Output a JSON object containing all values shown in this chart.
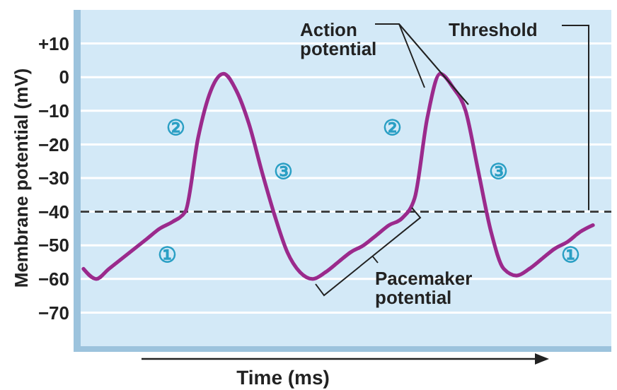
{
  "chart_data": {
    "type": "line",
    "xlabel": "Time (ms)",
    "ylabel": "Membrane potential (mV)",
    "categories": [
      null,
      null,
      null,
      null,
      null,
      null,
      null,
      null,
      null,
      null,
      null,
      null,
      null,
      null,
      null,
      null,
      null,
      null,
      null,
      null,
      null,
      null,
      null,
      null,
      null,
      null,
      null,
      null,
      null,
      null,
      null,
      null,
      null,
      null,
      null,
      null,
      null,
      null,
      null,
      null,
      null
    ],
    "series": [
      {
        "color": "#9b2a8c",
        "values": [
          -57,
          -60,
          -57,
          -54,
          -51,
          -48,
          -45,
          -43,
          -40,
          -18,
          -4,
          1,
          -4,
          -14,
          -28,
          -41,
          -52,
          -58,
          -60,
          -58,
          -55,
          -52,
          -50,
          -47,
          -44,
          -42,
          -36,
          -12,
          1,
          -3,
          -10,
          -28,
          -46,
          -57,
          -59,
          -57,
          -54,
          -51,
          -49,
          -46,
          -44
        ]
      }
    ],
    "ylim": [
      -80,
      20
    ],
    "yticks": [
      {
        "value": -70,
        "label": "−70"
      },
      {
        "value": -60,
        "label": "−60"
      },
      {
        "value": -50,
        "label": "−50"
      },
      {
        "value": -40,
        "label": "−40"
      },
      {
        "value": -30,
        "label": "−30"
      },
      {
        "value": -20,
        "label": "−20"
      },
      {
        "value": -10,
        "label": "−10"
      },
      0,
      {
        "value": 10,
        "label": "+10"
      }
    ],
    "grid": "y",
    "marker": "none",
    "line_style": "solid",
    "ref_lines": [
      {
        "axis": "y",
        "value": -40,
        "label": "Threshold",
        "color": "#333333",
        "line_style": "dashed"
      }
    ],
    "annotations": [
      "Action potential",
      "Pacemaker potential",
      "①",
      "②",
      "③",
      "①",
      "②",
      "③"
    ]
  }
}
